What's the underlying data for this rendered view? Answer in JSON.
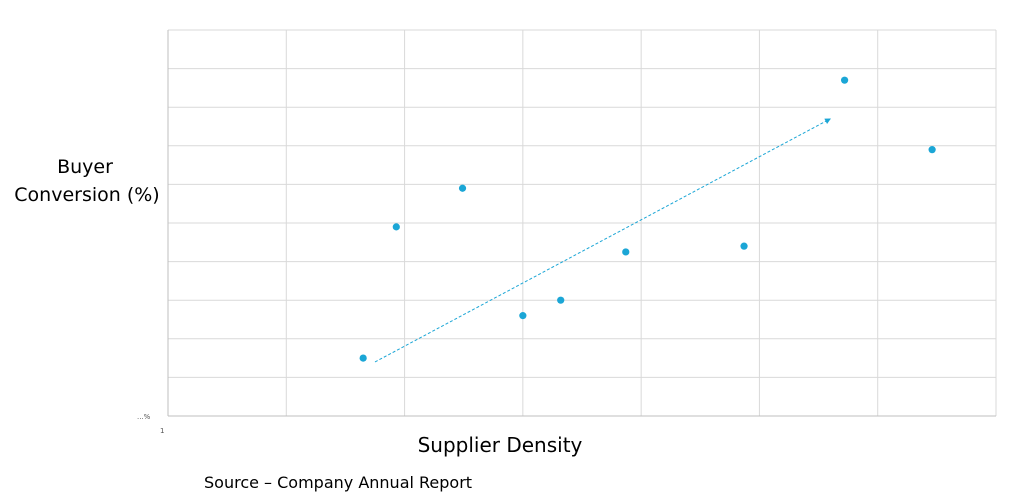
{
  "chart_data": {
    "type": "scatter",
    "title": "",
    "ylabel_lines": [
      "Buyer",
      "Conversion (%)"
    ],
    "xlabel": "Supplier Density",
    "source": "Source – Company Annual Report",
    "tick_labels": {
      "y_origin": "...%",
      "x_origin": "1"
    },
    "xlim": [
      0,
      7
    ],
    "ylim": [
      0,
      10
    ],
    "grid": true,
    "series": [
      {
        "points": [
          {
            "x": 1.65,
            "y": 1.5
          },
          {
            "x": 1.93,
            "y": 4.9
          },
          {
            "x": 2.49,
            "y": 5.9
          },
          {
            "x": 3.0,
            "y": 2.6
          },
          {
            "x": 3.32,
            "y": 3.0
          },
          {
            "x": 3.87,
            "y": 4.25
          },
          {
            "x": 4.87,
            "y": 4.4
          },
          {
            "x": 5.72,
            "y": 8.7
          },
          {
            "x": 6.46,
            "y": 6.9
          }
        ]
      }
    ],
    "trend_arrow": {
      "from": {
        "x": 1.75,
        "y": 1.4
      },
      "to": {
        "x": 5.6,
        "y": 7.7
      },
      "style": "dashed"
    },
    "colors": {
      "points": "#1ba6d6",
      "trend": "#1ba6d6",
      "grid": "#d9d9d9",
      "axis": "#bfbfbf"
    }
  }
}
